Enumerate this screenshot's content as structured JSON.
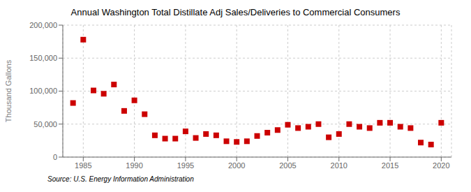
{
  "chart_data": {
    "type": "scatter",
    "title": "Annual Washington Total Distillate Adj Sales/Deliveries to Commercial Consumers",
    "ylabel": "Thousand Gallons",
    "annotations": [
      "Source: U.S. Energy Information Administration"
    ],
    "x": [
      1984,
      1985,
      1986,
      1987,
      1988,
      1989,
      1990,
      1991,
      1992,
      1993,
      1994,
      1995,
      1996,
      1997,
      1998,
      1999,
      2000,
      2001,
      2002,
      2003,
      2004,
      2005,
      2006,
      2007,
      2008,
      2009,
      2010,
      2011,
      2012,
      2013,
      2014,
      2015,
      2016,
      2017,
      2018,
      2019,
      2020
    ],
    "values": [
      82000,
      178000,
      101000,
      96000,
      110000,
      70000,
      86000,
      65000,
      33000,
      28000,
      28000,
      39000,
      29000,
      35000,
      33000,
      24000,
      23000,
      24000,
      32000,
      37000,
      41000,
      49000,
      44000,
      46000,
      50000,
      30000,
      35000,
      50000,
      46000,
      44000,
      52000,
      52000,
      46000,
      44000,
      22000,
      19000,
      52000
    ],
    "color": "#cc0000",
    "marker": "square",
    "xlim": [
      1983,
      2021
    ],
    "ylim": [
      0,
      200000
    ],
    "xticks": [
      1985,
      1990,
      1995,
      2000,
      2005,
      2010,
      2015,
      2020
    ],
    "yticks": [
      0,
      {
        "value": 50000,
        "label": "50,000"
      },
      {
        "value": 100000,
        "label": "100,000"
      },
      {
        "value": 150000,
        "label": "150,000"
      },
      {
        "value": 200000,
        "label": "200,000"
      }
    ],
    "grid": true
  }
}
